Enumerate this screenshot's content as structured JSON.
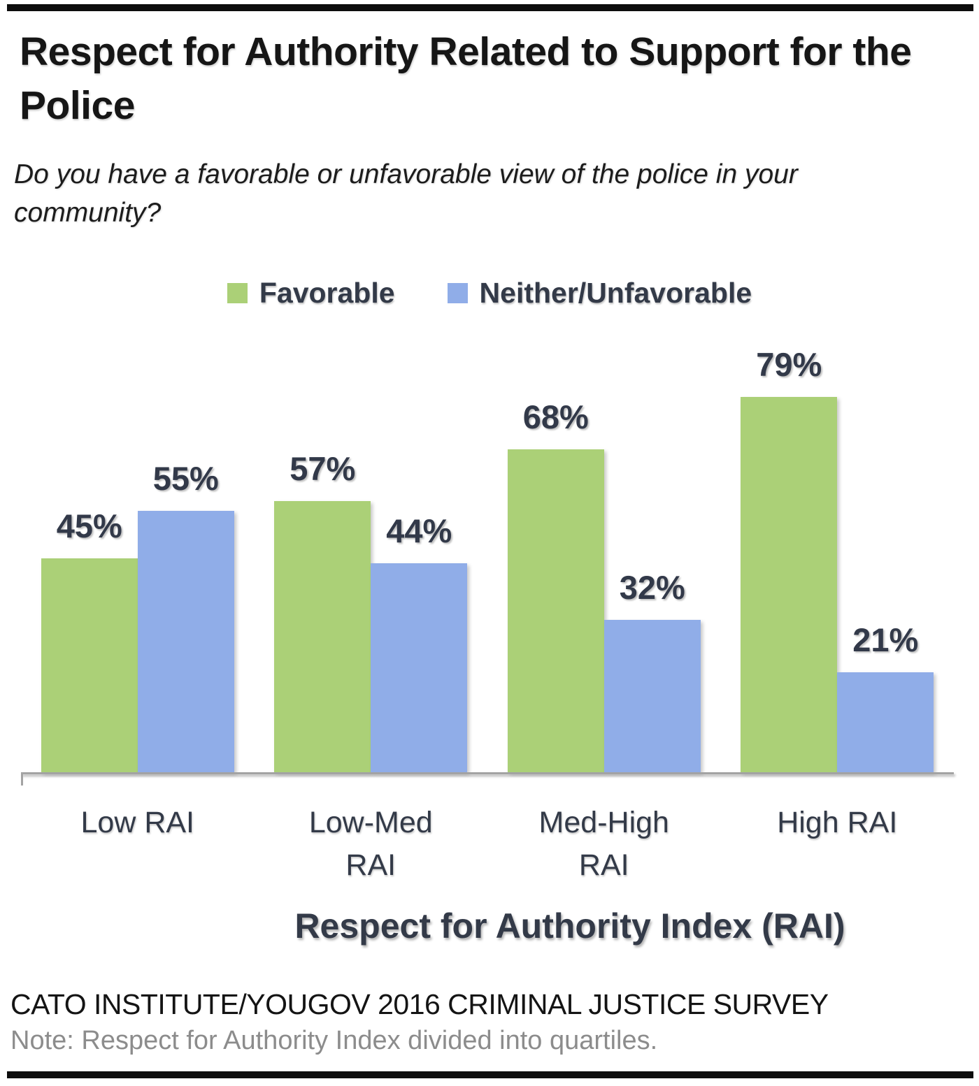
{
  "page": {
    "title": "Respect for Authority Related to Support for the Police",
    "subtitle": "Do you have a favorable or unfavorable view of the police in your community?",
    "source": "CATO INSTITUTE/YOUGOV 2016 CRIMINAL JUSTICE SURVEY",
    "note": "Note: Respect for Authority Index divided into quartiles."
  },
  "colors": {
    "favorable": "#abd077",
    "unfavorable": "#90ade8",
    "label_text": "#323949",
    "axis_line": "#a3a3a3",
    "note_gray": "#8c8c8c",
    "rule_black": "#0d0d0d"
  },
  "chart_data": {
    "type": "bar",
    "categories": [
      "Low RAI",
      "Low-Med RAI",
      "Med-High RAI",
      "High RAI"
    ],
    "series": [
      {
        "name": "Favorable",
        "color_key": "favorable",
        "values": [
          45,
          57,
          68,
          79
        ]
      },
      {
        "name": "Neither/Unfavorable",
        "color_key": "unfavorable",
        "values": [
          55,
          44,
          32,
          21
        ]
      }
    ],
    "value_suffix": "%",
    "title": "Respect for Authority Related to Support for the Police",
    "xlabel": "Respect for Authority Index (RAI)",
    "ylabel": "",
    "ylim": [
      0,
      100
    ],
    "grid": false,
    "legend_position": "top",
    "value_labels": "above-bars"
  }
}
